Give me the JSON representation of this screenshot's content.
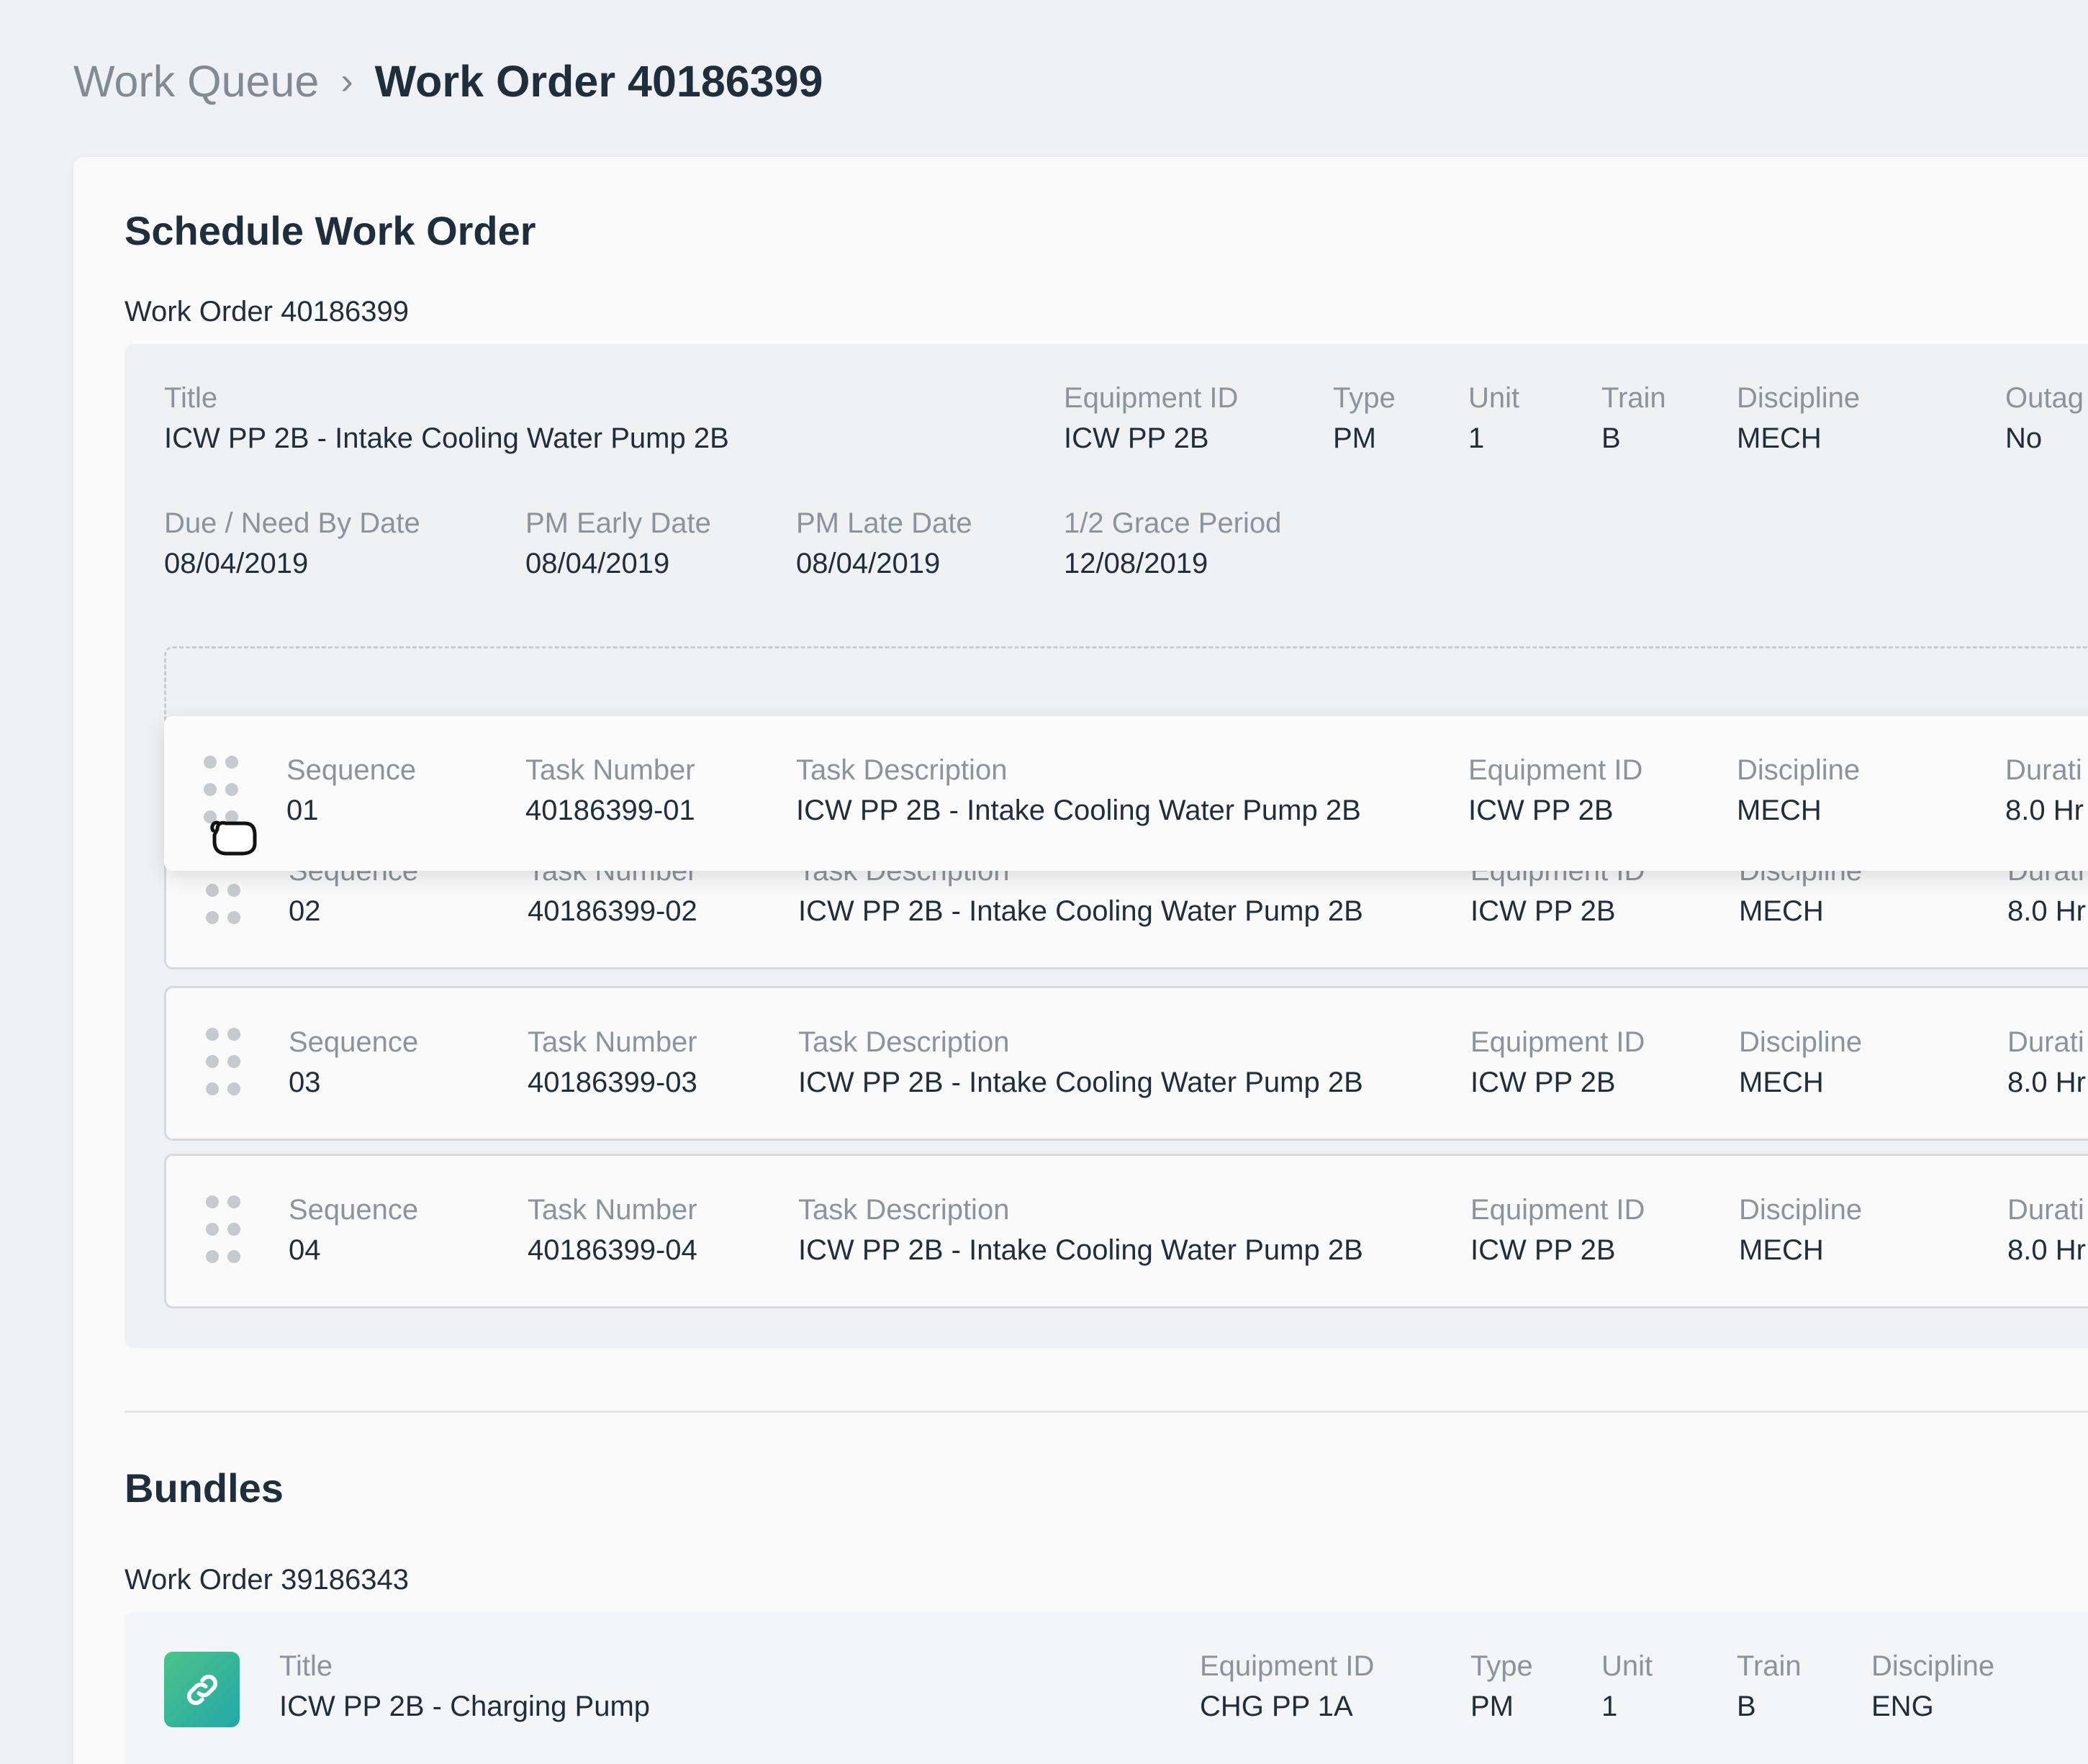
{
  "breadcrumb": {
    "parent": "Work Queue",
    "separator": "›",
    "current": "Work Order 40186399"
  },
  "schedule": {
    "section_title": "Schedule Work Order",
    "work_order_label": "Work Order 40186399",
    "header_fields": [
      {
        "label": "Title",
        "value": "ICW PP 2B - Intake Cooling Water Pump 2B"
      },
      {
        "label": "Equipment ID",
        "value": "ICW PP 2B"
      },
      {
        "label": "Type",
        "value": "PM"
      },
      {
        "label": "Unit",
        "value": "1"
      },
      {
        "label": "Train",
        "value": "B"
      },
      {
        "label": "Discipline",
        "value": "MECH"
      },
      {
        "label": "Outag",
        "value": "No"
      }
    ],
    "date_fields": [
      {
        "label": "Due / Need By Date",
        "value": "08/04/2019"
      },
      {
        "label": "PM Early Date",
        "value": "08/04/2019"
      },
      {
        "label": "PM Late Date",
        "value": "08/04/2019"
      },
      {
        "label": "1/2 Grace Period",
        "value": "12/08/2019"
      }
    ],
    "task_labels": {
      "sequence": "Sequence",
      "task_number": "Task Number",
      "task_description": "Task Description",
      "equipment_id": "Equipment ID",
      "discipline": "Discipline",
      "duration": "Durati"
    },
    "tasks": [
      {
        "sequence": "01",
        "task_number": "40186399-01",
        "task_description": "ICW PP 2B - Intake Cooling Water Pump 2B",
        "equipment_id": "ICW PP 2B",
        "discipline": "MECH",
        "duration": "8.0 Hr"
      },
      {
        "sequence": "02",
        "task_number": "40186399-02",
        "task_description": "ICW PP 2B - Intake Cooling Water Pump 2B",
        "equipment_id": "ICW PP 2B",
        "discipline": "MECH",
        "duration": "8.0 Hr"
      },
      {
        "sequence": "03",
        "task_number": "40186399-03",
        "task_description": "ICW PP 2B - Intake Cooling Water Pump 2B",
        "equipment_id": "ICW PP 2B",
        "discipline": "MECH",
        "duration": "8.0 Hr"
      },
      {
        "sequence": "04",
        "task_number": "40186399-04",
        "task_description": "ICW PP 2B - Intake Cooling Water Pump 2B",
        "equipment_id": "ICW PP 2B",
        "discipline": "MECH",
        "duration": "8.0 Hr"
      }
    ]
  },
  "bundles": {
    "section_title": "Bundles",
    "work_order_label": "Work Order 39186343",
    "fields": [
      {
        "label": "Title",
        "value": "ICW PP 2B - Charging Pump"
      },
      {
        "label": "Equipment ID",
        "value": "CHG PP 1A"
      },
      {
        "label": "Type",
        "value": "PM"
      },
      {
        "label": "Unit",
        "value": "1"
      },
      {
        "label": "Train",
        "value": "B"
      },
      {
        "label": "Discipline",
        "value": "ENG"
      }
    ],
    "badge_icon": "link-icon"
  },
  "icons": {
    "drag_handle": "drag-handle-icon",
    "cursor": "grab-cursor-icon",
    "chevron": "chevron-right-icon"
  },
  "colors": {
    "background": "#f0f1f4",
    "card": "#fafafa",
    "text_primary": "#1f2e3d",
    "text_label": "#8a949e",
    "badge_start": "#4cc38a",
    "badge_end": "#22a8a8"
  }
}
